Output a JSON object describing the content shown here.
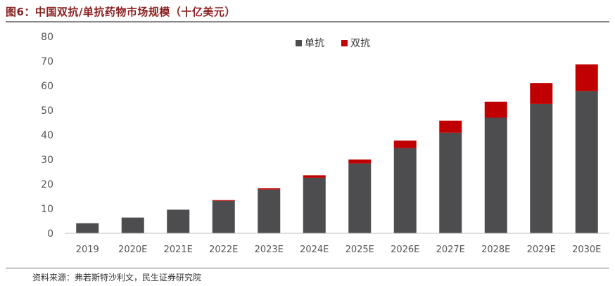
{
  "figure": {
    "title": "图6：中国双抗/单抗药物市场规模（十亿美元）",
    "source": "资料来源：弗若斯特沙利文，民生证券研究院"
  },
  "chart_data": {
    "type": "bar",
    "stacked": true,
    "categories": [
      "2019",
      "2020E",
      "2021E",
      "2022E",
      "2023E",
      "2024E",
      "2025E",
      "2026E",
      "2027E",
      "2028E",
      "2029E",
      "2030E"
    ],
    "series": [
      {
        "name": "单抗",
        "color": "#4d4d4f",
        "values": [
          4.1,
          6.4,
          9.6,
          13.2,
          17.8,
          22.6,
          28.4,
          34.6,
          40.9,
          47.0,
          52.6,
          57.8
        ]
      },
      {
        "name": "双抗",
        "color": "#c00000",
        "values": [
          0.0,
          0.0,
          0.0,
          0.3,
          0.5,
          1.0,
          1.6,
          3.1,
          4.9,
          6.5,
          8.5,
          10.9
        ]
      }
    ],
    "ylim": [
      0,
      80
    ],
    "yticks": [
      0,
      10,
      20,
      30,
      40,
      50,
      60,
      70,
      80
    ],
    "grid": false,
    "legend_position": "top-center"
  }
}
